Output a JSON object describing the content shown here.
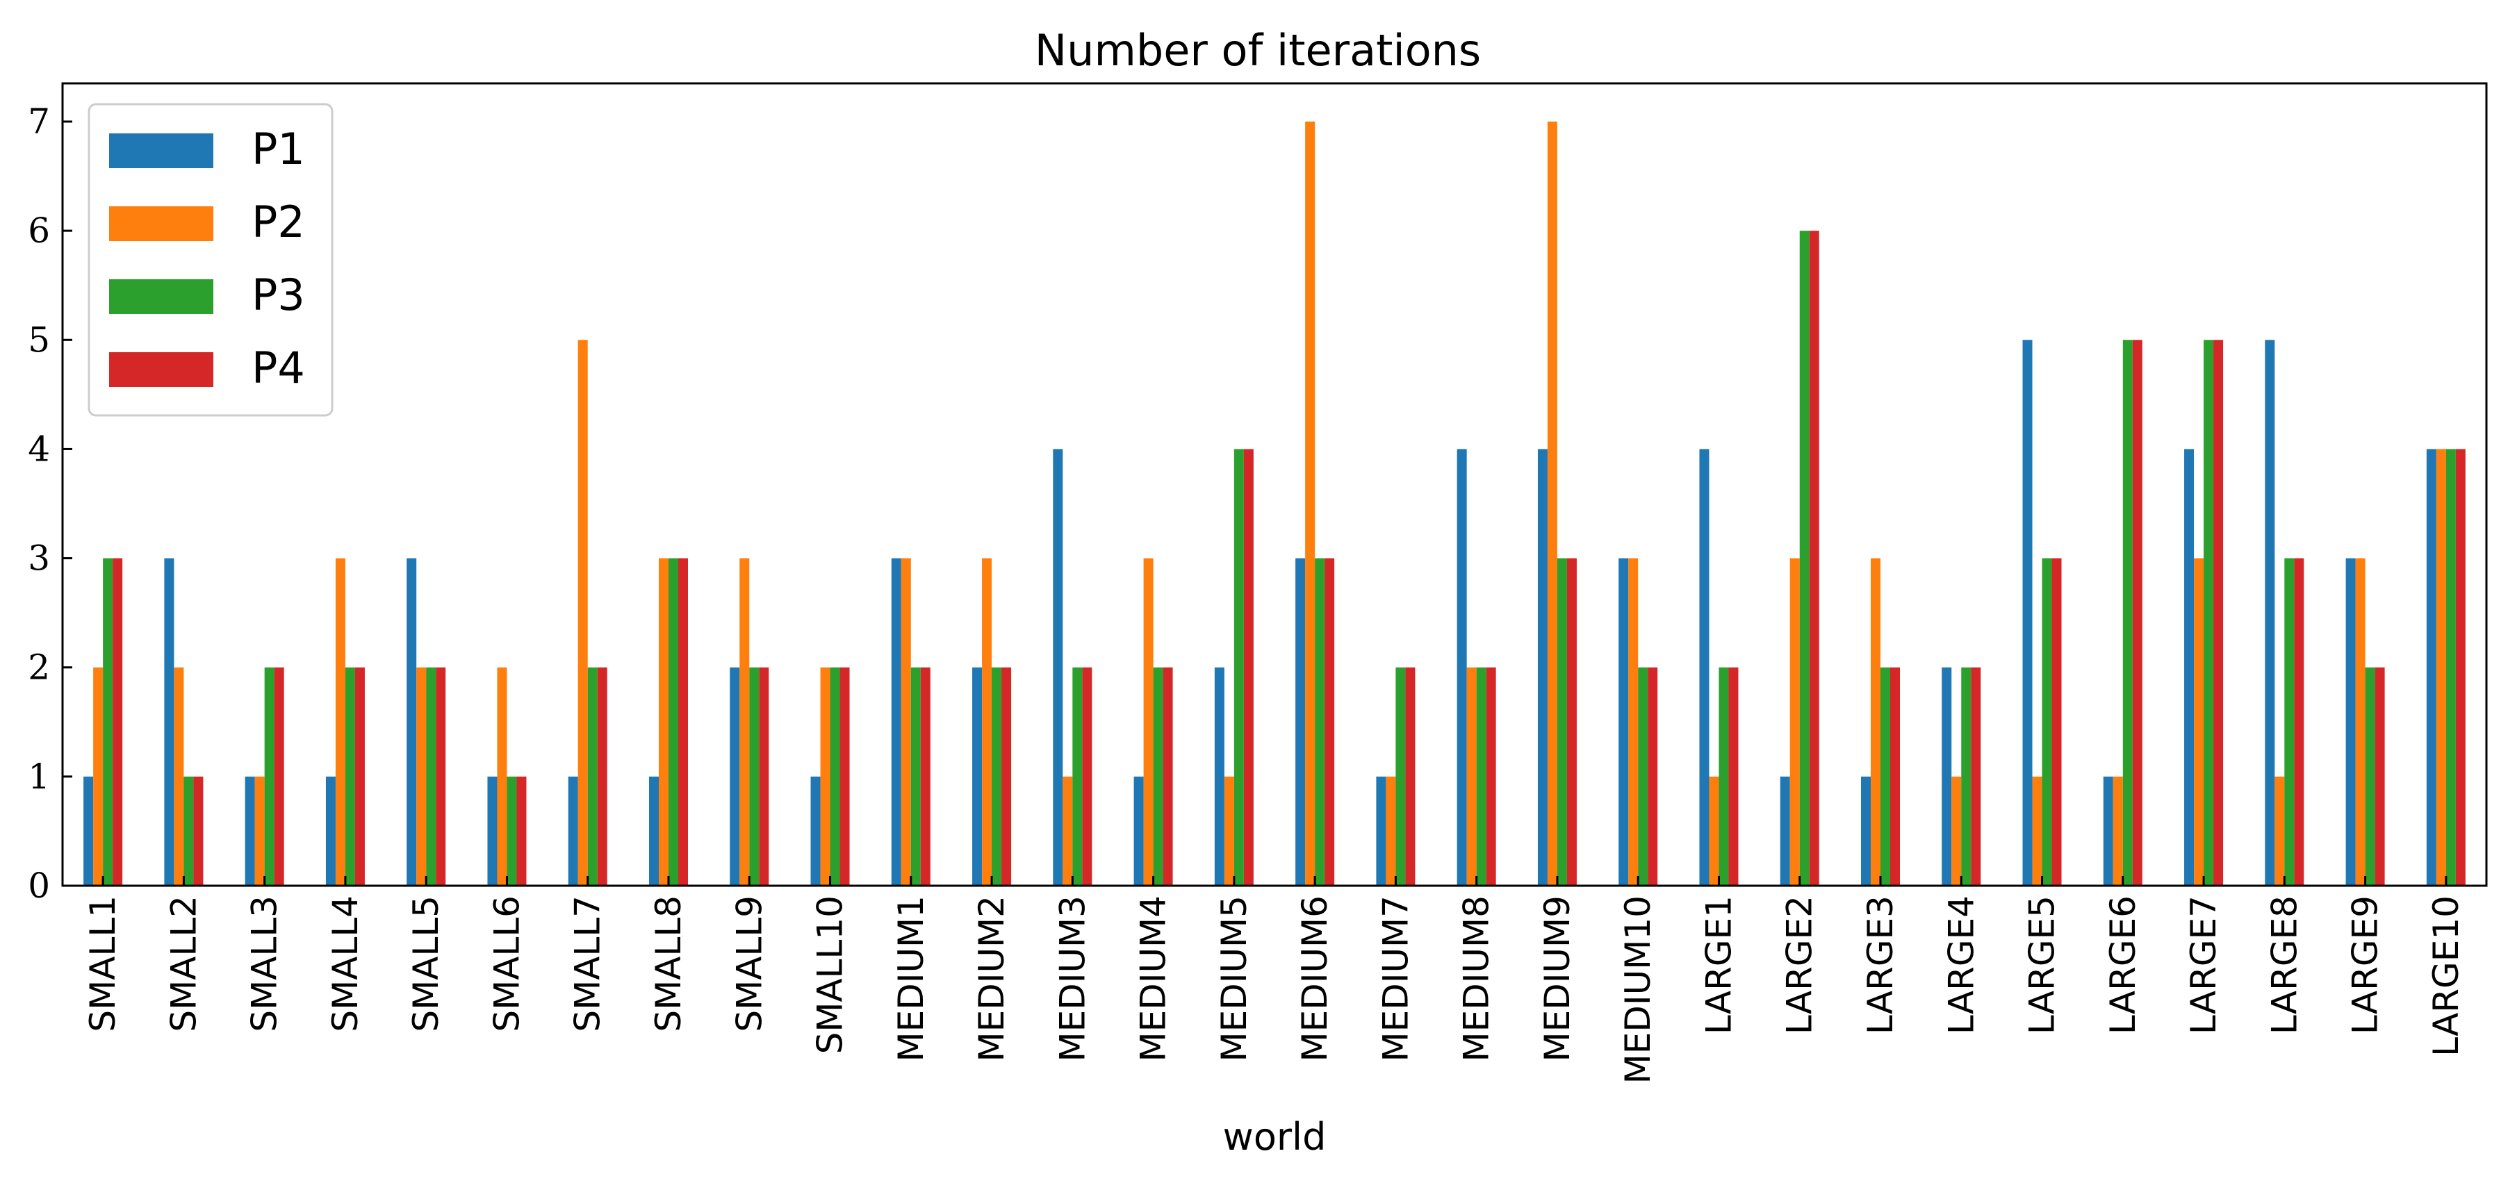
{
  "chart_data": {
    "type": "bar",
    "title": "Number of iterations",
    "xlabel": "world",
    "ylabel": "",
    "ylim": [
      0,
      7.35
    ],
    "yticks": [
      "0",
      "1",
      "2",
      "3",
      "4",
      "5",
      "6",
      "7"
    ],
    "legend_position": "top-left",
    "grid": false,
    "categories": [
      "SMALL1",
      "SMALL2",
      "SMALL3",
      "SMALL4",
      "SMALL5",
      "SMALL6",
      "SMALL7",
      "SMALL8",
      "SMALL9",
      "SMALL10",
      "MEDIUM1",
      "MEDIUM2",
      "MEDIUM3",
      "MEDIUM4",
      "MEDIUM5",
      "MEDIUM6",
      "MEDIUM7",
      "MEDIUM8",
      "MEDIUM9",
      "MEDIUM10",
      "LARGE1",
      "LARGE2",
      "LARGE3",
      "LARGE4",
      "LARGE5",
      "LARGE6",
      "LARGE7",
      "LARGE8",
      "LARGE9",
      "LARGE10"
    ],
    "series": [
      {
        "name": "P1",
        "color": "#1f77b4",
        "values": [
          1,
          3,
          1,
          1,
          3,
          1,
          1,
          1,
          2,
          1,
          3,
          2,
          4,
          1,
          2,
          3,
          1,
          4,
          4,
          3,
          4,
          1,
          1,
          2,
          5,
          1,
          4,
          5,
          3,
          4
        ]
      },
      {
        "name": "P2",
        "color": "#ff7f0e",
        "values": [
          2,
          2,
          1,
          3,
          2,
          2,
          5,
          3,
          3,
          2,
          3,
          3,
          1,
          3,
          1,
          7,
          1,
          2,
          7,
          3,
          1,
          3,
          3,
          1,
          1,
          1,
          3,
          1,
          3,
          4
        ]
      },
      {
        "name": "P3",
        "color": "#2ca02c",
        "values": [
          3,
          1,
          2,
          2,
          2,
          1,
          2,
          3,
          2,
          2,
          2,
          2,
          2,
          2,
          4,
          3,
          2,
          2,
          3,
          2,
          2,
          6,
          2,
          2,
          3,
          5,
          5,
          3,
          2,
          4
        ]
      },
      {
        "name": "P4",
        "color": "#d62728",
        "values": [
          3,
          1,
          2,
          2,
          2,
          1,
          2,
          3,
          2,
          2,
          2,
          2,
          2,
          2,
          4,
          3,
          2,
          2,
          3,
          2,
          2,
          6,
          2,
          2,
          3,
          5,
          5,
          3,
          2,
          4
        ]
      }
    ]
  }
}
